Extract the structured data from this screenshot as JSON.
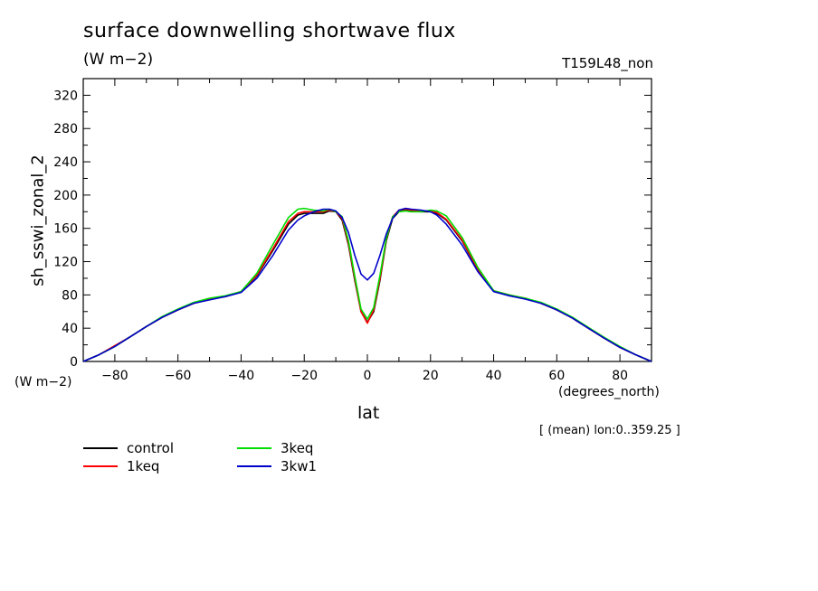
{
  "chart_data": {
    "type": "line",
    "title": "surface downwelling shortwave flux",
    "units": "(W m−2)",
    "run_label": "T159L48_non",
    "xlabel": "lat",
    "x_units": "(degrees_north)",
    "ylabel": "sh_sswi_zonal_2",
    "y_units": "(W m−2)",
    "note": "[ (mean) lon:0..359.25 ]",
    "xlim": [
      -90,
      90
    ],
    "ylim": [
      0,
      340
    ],
    "x_ticks": [
      -80,
      -60,
      -40,
      -20,
      0,
      20,
      40,
      60,
      80
    ],
    "y_ticks": [
      0,
      40,
      80,
      120,
      160,
      200,
      240,
      280,
      320
    ],
    "grid": false,
    "legend_position": "bottom-left",
    "x": [
      -90,
      -85,
      -80,
      -75,
      -70,
      -65,
      -60,
      -55,
      -50,
      -45,
      -40,
      -35,
      -30,
      -25,
      -22,
      -20,
      -17,
      -14,
      -12,
      -10,
      -8,
      -6,
      -4,
      -2,
      0,
      2,
      4,
      6,
      8,
      10,
      12,
      14,
      17,
      20,
      22,
      25,
      30,
      35,
      40,
      45,
      50,
      55,
      60,
      65,
      70,
      75,
      80,
      85,
      90
    ],
    "series": [
      {
        "name": "control",
        "color": "#000000",
        "values": [
          0,
          8,
          18,
          30,
          42,
          53,
          62,
          70,
          75,
          78,
          84,
          103,
          133,
          165,
          176,
          178,
          178,
          178,
          181,
          180,
          170,
          140,
          98,
          60,
          47,
          60,
          98,
          145,
          172,
          180,
          182,
          181,
          180,
          180,
          178,
          170,
          145,
          110,
          85,
          79,
          76,
          70,
          62,
          52,
          40,
          28,
          17,
          8,
          0
        ]
      },
      {
        "name": "1keq",
        "color": "#ff0000",
        "values": [
          0,
          8,
          19,
          30,
          42,
          53,
          62,
          70,
          75,
          78,
          84,
          104,
          135,
          168,
          178,
          180,
          180,
          180,
          182,
          180,
          172,
          142,
          100,
          60,
          46,
          62,
          100,
          147,
          174,
          182,
          183,
          182,
          181,
          181,
          179,
          171,
          146,
          111,
          85,
          80,
          76,
          70,
          62,
          52,
          40,
          28,
          17,
          8,
          0
        ]
      },
      {
        "name": "3keq",
        "color": "#00dd00",
        "values": [
          0,
          8,
          18,
          30,
          42,
          54,
          63,
          71,
          76,
          79,
          84,
          106,
          140,
          173,
          183,
          184,
          182,
          181,
          183,
          180,
          174,
          145,
          103,
          63,
          51,
          65,
          104,
          148,
          174,
          180,
          181,
          180,
          180,
          182,
          181,
          175,
          149,
          113,
          85,
          80,
          76,
          71,
          63,
          53,
          41,
          29,
          18,
          8,
          0
        ]
      },
      {
        "name": "3kw1",
        "color": "#0000cc",
        "values": [
          0,
          8,
          18,
          30,
          42,
          53,
          62,
          70,
          74,
          78,
          83,
          100,
          127,
          158,
          170,
          175,
          180,
          183,
          183,
          181,
          173,
          155,
          128,
          105,
          98,
          106,
          128,
          153,
          172,
          182,
          184,
          183,
          182,
          180,
          176,
          165,
          140,
          108,
          84,
          79,
          75,
          70,
          62,
          52,
          40,
          28,
          17,
          8,
          0
        ]
      }
    ]
  }
}
